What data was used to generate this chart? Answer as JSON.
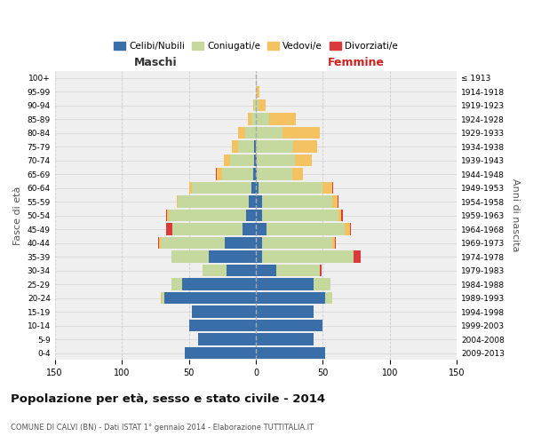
{
  "age_groups": [
    "0-4",
    "5-9",
    "10-14",
    "15-19",
    "20-24",
    "25-29",
    "30-34",
    "35-39",
    "40-44",
    "45-49",
    "50-54",
    "55-59",
    "60-64",
    "65-69",
    "70-74",
    "75-79",
    "80-84",
    "85-89",
    "90-94",
    "95-99",
    "100+"
  ],
  "birth_years": [
    "2009-2013",
    "2004-2008",
    "1999-2003",
    "1994-1998",
    "1989-1993",
    "1984-1988",
    "1979-1983",
    "1974-1978",
    "1969-1973",
    "1964-1968",
    "1959-1963",
    "1954-1958",
    "1949-1953",
    "1944-1948",
    "1939-1943",
    "1934-1938",
    "1929-1933",
    "1924-1928",
    "1919-1923",
    "1914-1918",
    "≤ 1913"
  ],
  "colors": {
    "celibi": "#3a6ea8",
    "coniugati": "#c5d89d",
    "vedovi": "#f5c262",
    "divorziati": "#d93b3b"
  },
  "maschi_celibi": [
    53,
    43,
    50,
    48,
    68,
    55,
    22,
    35,
    23,
    10,
    7,
    5,
    3,
    2,
    1,
    1,
    0,
    0,
    0,
    0,
    0
  ],
  "maschi_coniugati": [
    0,
    0,
    0,
    0,
    2,
    8,
    18,
    28,
    48,
    52,
    58,
    53,
    45,
    23,
    18,
    12,
    8,
    3,
    1,
    0,
    0
  ],
  "maschi_vedovi": [
    0,
    0,
    0,
    0,
    1,
    0,
    0,
    0,
    1,
    0,
    1,
    1,
    2,
    4,
    5,
    5,
    5,
    3,
    1,
    0,
    0
  ],
  "maschi_divorziati": [
    0,
    0,
    0,
    0,
    0,
    0,
    0,
    0,
    1,
    5,
    1,
    0,
    0,
    1,
    0,
    0,
    0,
    0,
    0,
    0,
    0
  ],
  "femmine_celibi": [
    52,
    43,
    50,
    43,
    52,
    43,
    15,
    5,
    5,
    8,
    5,
    5,
    2,
    1,
    1,
    0,
    0,
    0,
    0,
    0,
    0
  ],
  "femmine_coniugati": [
    0,
    0,
    0,
    0,
    5,
    13,
    33,
    68,
    52,
    58,
    57,
    52,
    48,
    26,
    28,
    28,
    20,
    10,
    2,
    1,
    0
  ],
  "femmine_vedovi": [
    0,
    0,
    0,
    0,
    0,
    0,
    0,
    0,
    2,
    4,
    2,
    4,
    7,
    8,
    13,
    18,
    28,
    20,
    5,
    2,
    0
  ],
  "femmine_divorziati": [
    0,
    0,
    0,
    0,
    0,
    0,
    1,
    5,
    1,
    1,
    1,
    1,
    1,
    0,
    0,
    0,
    0,
    0,
    0,
    0,
    0
  ],
  "title": "Popolazione per età, sesso e stato civile - 2014",
  "subtitle": "COMUNE DI CALVI (BN) - Dati ISTAT 1° gennaio 2014 - Elaborazione TUTTITALIA.IT",
  "xlabel_left": "Maschi",
  "xlabel_right": "Femmine",
  "ylabel_left": "Fasce di età",
  "ylabel_right": "Anni di nascita",
  "legend_labels": [
    "Celibi/Nubili",
    "Coniugati/e",
    "Vedovi/e",
    "Divorziati/e"
  ]
}
